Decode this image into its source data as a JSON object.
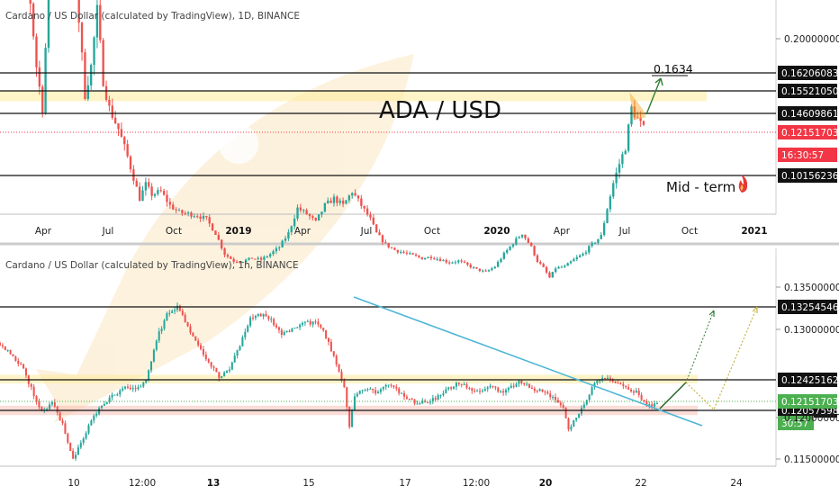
{
  "chart_data": [
    {
      "type": "candlestick",
      "title": "Cardano / US Dollar (calculated by TradingView), 1D, BINANCE",
      "main_label": "ADA / USD",
      "annotation": "Mid - term",
      "target_label": "0.1634",
      "x_ticks": [
        "Apr",
        "Jul",
        "Oct",
        "2019",
        "Apr",
        "Jul",
        "Oct",
        "2020",
        "Apr",
        "Jul",
        "Oct",
        "2021"
      ],
      "y_ticks": [
        "0.20000000"
      ],
      "levels": [
        {
          "label": "0.16206083",
          "value": 0.16206083
        },
        {
          "label": "0.15521050",
          "value": 0.1552105
        },
        {
          "label": "0.14609861",
          "value": 0.14609861
        },
        {
          "label": "0.10156236",
          "value": 0.10156236
        }
      ],
      "current_price": {
        "label": "0.12151703",
        "value": 0.12151703,
        "color": "#f23645"
      },
      "countdown": "16:30:57",
      "resistance_zone": [
        0.155,
        0.1625
      ],
      "close_path": [
        [
          0,
          0.31
        ],
        [
          3,
          0.35
        ],
        [
          6,
          0.4
        ],
        [
          9,
          0.25
        ],
        [
          12,
          0.18
        ],
        [
          14,
          0.15
        ],
        [
          17,
          0.28
        ],
        [
          20,
          0.34
        ],
        [
          22,
          0.3
        ],
        [
          25,
          0.24
        ],
        [
          28,
          0.16
        ],
        [
          30,
          0.18
        ],
        [
          32,
          0.22
        ],
        [
          34,
          0.17
        ],
        [
          36,
          0.15
        ],
        [
          39,
          0.135
        ],
        [
          42,
          0.115
        ],
        [
          44,
          0.1
        ],
        [
          46,
          0.085
        ],
        [
          48,
          0.095
        ],
        [
          50,
          0.088
        ],
        [
          53,
          0.09
        ],
        [
          56,
          0.08
        ],
        [
          59,
          0.075
        ],
        [
          62,
          0.074
        ],
        [
          65,
          0.073
        ],
        [
          68,
          0.07
        ],
        [
          71,
          0.06
        ],
        [
          74,
          0.045
        ],
        [
          77,
          0.04
        ],
        [
          80,
          0.04
        ],
        [
          83,
          0.042
        ],
        [
          86,
          0.041
        ],
        [
          89,
          0.045
        ],
        [
          92,
          0.05
        ],
        [
          95,
          0.06
        ],
        [
          98,
          0.078
        ],
        [
          101,
          0.074
        ],
        [
          104,
          0.068
        ],
        [
          107,
          0.08
        ],
        [
          110,
          0.085
        ],
        [
          113,
          0.08
        ],
        [
          116,
          0.09
        ],
        [
          119,
          0.08
        ],
        [
          122,
          0.07
        ],
        [
          124,
          0.06
        ],
        [
          127,
          0.052
        ],
        [
          130,
          0.048
        ],
        [
          133,
          0.046
        ],
        [
          136,
          0.044
        ],
        [
          139,
          0.042
        ],
        [
          142,
          0.043
        ],
        [
          145,
          0.041
        ],
        [
          148,
          0.039
        ],
        [
          151,
          0.04
        ],
        [
          154,
          0.037
        ],
        [
          157,
          0.034
        ],
        [
          160,
          0.032
        ],
        [
          163,
          0.036
        ],
        [
          166,
          0.045
        ],
        [
          169,
          0.053
        ],
        [
          172,
          0.06
        ],
        [
          175,
          0.05
        ],
        [
          177,
          0.04
        ],
        [
          179,
          0.035
        ],
        [
          181,
          0.028
        ],
        [
          183,
          0.035
        ],
        [
          186,
          0.036
        ],
        [
          189,
          0.041
        ],
        [
          192,
          0.045
        ],
        [
          195,
          0.052
        ],
        [
          198,
          0.058
        ],
        [
          200,
          0.078
        ],
        [
          202,
          0.096
        ],
        [
          204,
          0.11
        ],
        [
          206,
          0.122
        ],
        [
          208,
          0.15
        ],
        [
          210,
          0.142
        ],
        [
          212,
          0.135
        ]
      ]
    },
    {
      "type": "candlestick",
      "title": "Cardano / US Dollar (calculated by TradingView), 1h, BINANCE",
      "x_ticks": [
        "10",
        "12:00",
        "13",
        "15",
        "17",
        "12:00",
        "20",
        "22",
        "24"
      ],
      "y_ticks": [
        "0.13500000",
        "0.13000000",
        "0.12000000",
        "0.11500000"
      ],
      "levels": [
        {
          "label": "0.13254546",
          "value": 0.13254546
        },
        {
          "label": "0.12425162",
          "value": 0.12425162
        },
        {
          "label": "0.12057598",
          "value": 0.12057598
        }
      ],
      "current_price": {
        "label": "0.12151703",
        "value": 0.12151703,
        "color": "#4caf50"
      },
      "countdown": "30:57",
      "support_zone": [
        0.1201,
        0.1212
      ],
      "resistance_zone": [
        0.1238,
        0.1248
      ],
      "close_path": [
        [
          0,
          0.1285
        ],
        [
          4,
          0.1272
        ],
        [
          8,
          0.126
        ],
        [
          12,
          0.1232
        ],
        [
          16,
          0.1205
        ],
        [
          20,
          0.1215
        ],
        [
          24,
          0.119
        ],
        [
          28,
          0.115
        ],
        [
          32,
          0.1175
        ],
        [
          36,
          0.12
        ],
        [
          40,
          0.1215
        ],
        [
          44,
          0.1225
        ],
        [
          48,
          0.1232
        ],
        [
          52,
          0.1232
        ],
        [
          56,
          0.124
        ],
        [
          60,
          0.129
        ],
        [
          64,
          0.1318
        ],
        [
          68,
          0.1328
        ],
        [
          72,
          0.1305
        ],
        [
          76,
          0.1282
        ],
        [
          80,
          0.1262
        ],
        [
          84,
          0.1245
        ],
        [
          88,
          0.1255
        ],
        [
          92,
          0.1282
        ],
        [
          96,
          0.1313
        ],
        [
          100,
          0.1318
        ],
        [
          104,
          0.1312
        ],
        [
          108,
          0.1295
        ],
        [
          112,
          0.13
        ],
        [
          116,
          0.1306
        ],
        [
          120,
          0.131
        ],
        [
          124,
          0.13
        ],
        [
          128,
          0.127
        ],
        [
          132,
          0.1235
        ],
        [
          134,
          0.1185
        ],
        [
          136,
          0.1225
        ],
        [
          140,
          0.1232
        ],
        [
          144,
          0.1228
        ],
        [
          148,
          0.1238
        ],
        [
          152,
          0.123
        ],
        [
          156,
          0.1221
        ],
        [
          160,
          0.1215
        ],
        [
          164,
          0.1218
        ],
        [
          168,
          0.1222
        ],
        [
          172,
          0.1232
        ],
        [
          176,
          0.1238
        ],
        [
          180,
          0.1232
        ],
        [
          184,
          0.123
        ],
        [
          188,
          0.1236
        ],
        [
          192,
          0.1228
        ],
        [
          196,
          0.1235
        ],
        [
          200,
          0.124
        ],
        [
          204,
          0.1232
        ],
        [
          208,
          0.1228
        ],
        [
          212,
          0.1222
        ],
        [
          216,
          0.121
        ],
        [
          218,
          0.1185
        ],
        [
          220,
          0.1195
        ],
        [
          224,
          0.1215
        ],
        [
          228,
          0.1238
        ],
        [
          232,
          0.1245
        ],
        [
          236,
          0.124
        ],
        [
          240,
          0.1232
        ],
        [
          244,
          0.1228
        ],
        [
          248,
          0.1212
        ],
        [
          252,
          0.1215
        ]
      ]
    }
  ],
  "colors": {
    "up": "#26a69a",
    "down": "#ef5350",
    "trendline": "#4fb6d6",
    "projection": "#2e7d32",
    "projection_alt": "#c9b54a",
    "zone": "#ffeb99"
  }
}
